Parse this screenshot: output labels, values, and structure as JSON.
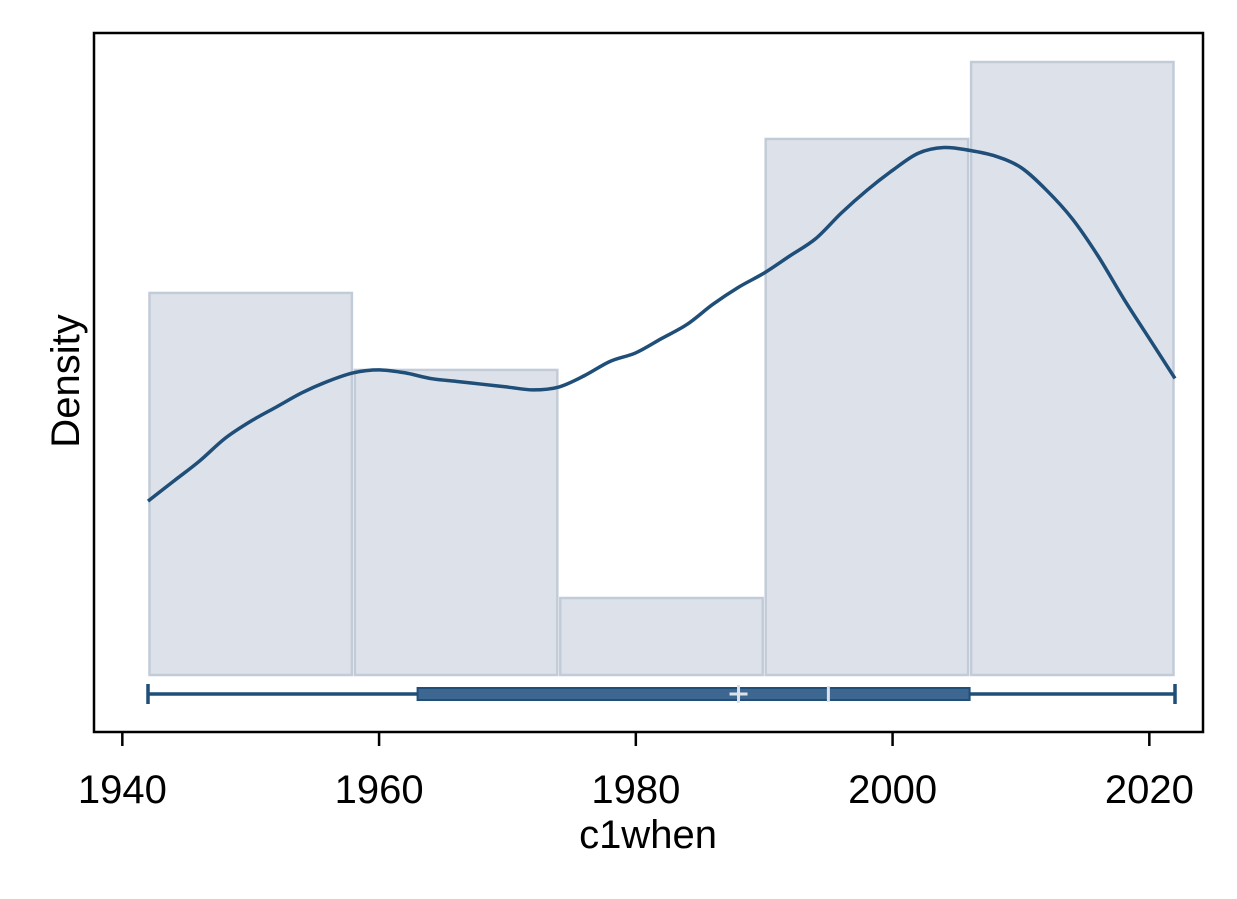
{
  "chart_data": {
    "type": "bar",
    "subtype": "histogram with kernel density and box plot",
    "xlabel": "c1when",
    "ylabel": "Density",
    "xlim": [
      1937,
      2024
    ],
    "x_ticks": [
      1940,
      1960,
      1980,
      2000,
      2020
    ],
    "y_ticks": [],
    "grid": false,
    "legend": "none",
    "histogram": {
      "bin_edges": [
        1942,
        1958,
        1974,
        1990,
        2006,
        2022
      ],
      "heights": [
        0.0134,
        0.0107,
        0.0027,
        0.0188,
        0.0215
      ]
    },
    "density_curve": {
      "x": [
        1942,
        1944,
        1946,
        1948,
        1950,
        1952,
        1954,
        1956,
        1958,
        1960,
        1962,
        1964,
        1966,
        1968,
        1970,
        1972,
        1974,
        1976,
        1978,
        1980,
        1982,
        1984,
        1986,
        1988,
        1990,
        1992,
        1994,
        1996,
        1998,
        2000,
        2002,
        2004,
        2006,
        2008,
        2010,
        2012,
        2014,
        2016,
        2018,
        2020,
        2022
      ],
      "y": [
        0.0061,
        0.0068,
        0.0075,
        0.0083,
        0.0089,
        0.0094,
        0.0099,
        0.0103,
        0.0106,
        0.0107,
        0.0106,
        0.0104,
        0.0103,
        0.0102,
        0.0101,
        0.01,
        0.0101,
        0.0105,
        0.011,
        0.0113,
        0.0118,
        0.0123,
        0.013,
        0.0136,
        0.0141,
        0.0147,
        0.0153,
        0.0162,
        0.017,
        0.0177,
        0.0183,
        0.0185,
        0.0184,
        0.0182,
        0.0178,
        0.017,
        0.016,
        0.0147,
        0.0132,
        0.0118,
        0.0104
      ]
    },
    "box_plot": {
      "min": 1942,
      "q1": 1963,
      "median": 1995,
      "mean": 1988,
      "q3": 2006,
      "max": 2022
    },
    "colors": {
      "bar_fill": "#dde2ea",
      "bar_stroke": "#c2ccd8",
      "curve": "#1f4e79",
      "box_fill": "#3d6690",
      "box_stroke": "#1f4e79",
      "box_marker": "#dde2ea",
      "axis": "#000000"
    }
  }
}
